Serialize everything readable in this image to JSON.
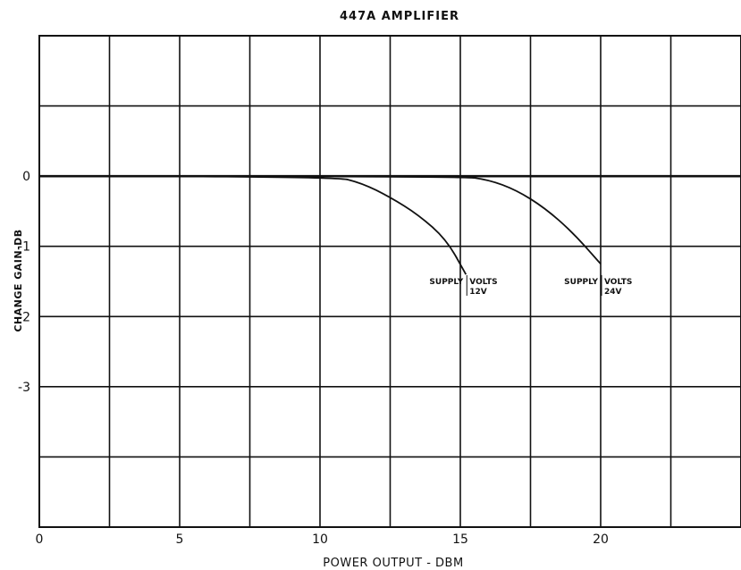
{
  "chart_data": {
    "type": "line",
    "title": "447A AMPLIFIER",
    "xlabel": "POWER OUTPUT - DBM",
    "ylabel": "CHANGE GAIN-DB",
    "xlim": [
      0,
      25
    ],
    "ylim": [
      -5,
      2
    ],
    "x_ticks": [
      {
        "value": 0,
        "label": "0"
      },
      {
        "value": 5,
        "label": "5"
      },
      {
        "value": 10,
        "label": "10"
      },
      {
        "value": 15,
        "label": "15"
      },
      {
        "value": 20,
        "label": "20"
      }
    ],
    "y_ticks": [
      {
        "value": 0,
        "label": "0"
      },
      {
        "value": -1,
        "label": "-1"
      },
      {
        "value": -2,
        "label": "-2"
      },
      {
        "value": -3,
        "label": "-3"
      }
    ],
    "grid": true,
    "series": [
      {
        "annotation": [
          "SUPPLY",
          "VOLTS",
          "12V"
        ],
        "x": [
          0,
          10.5,
          11.5,
          12.5,
          13.5,
          14.5,
          15.2
        ],
        "y": [
          0,
          0,
          -0.1,
          -0.3,
          -0.55,
          -0.9,
          -1.4
        ]
      },
      {
        "annotation": [
          "SUPPLY",
          "VOLTS",
          "24V"
        ],
        "x": [
          0,
          15.0,
          16.0,
          17.0,
          18.0,
          19.0,
          20.0
        ],
        "y": [
          0,
          0,
          -0.05,
          -0.2,
          -0.45,
          -0.8,
          -1.25
        ]
      }
    ]
  }
}
